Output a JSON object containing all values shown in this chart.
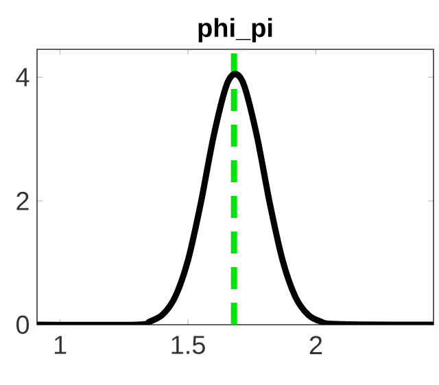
{
  "chart_data": {
    "type": "line",
    "title": "phi_pi",
    "series": [
      {
        "color": "#000000",
        "x": [
          0.91,
          1.3,
          1.35,
          1.4,
          1.45,
          1.5,
          1.55,
          1.6,
          1.65,
          1.685,
          1.72,
          1.77,
          1.82,
          1.87,
          1.92,
          1.97,
          2.02,
          2.08,
          2.46
        ],
        "values": [
          0,
          0,
          0.05,
          0.16,
          0.45,
          1.04,
          1.96,
          3.04,
          3.86,
          4.05,
          3.86,
          3.04,
          1.96,
          1.04,
          0.45,
          0.16,
          0.05,
          0.01,
          0
        ]
      }
    ],
    "xlim": [
      0.91,
      2.46
    ],
    "ylim": [
      0,
      4.45
    ],
    "xticks": [
      1,
      1.5,
      2
    ],
    "yticks": [
      0,
      2,
      4
    ],
    "ref_lines": [
      {
        "axis": "x",
        "value": 1.68,
        "color": "#00e600",
        "line_style": "dashed"
      }
    ],
    "grid": false,
    "marker": "none",
    "line_style": "solid"
  }
}
